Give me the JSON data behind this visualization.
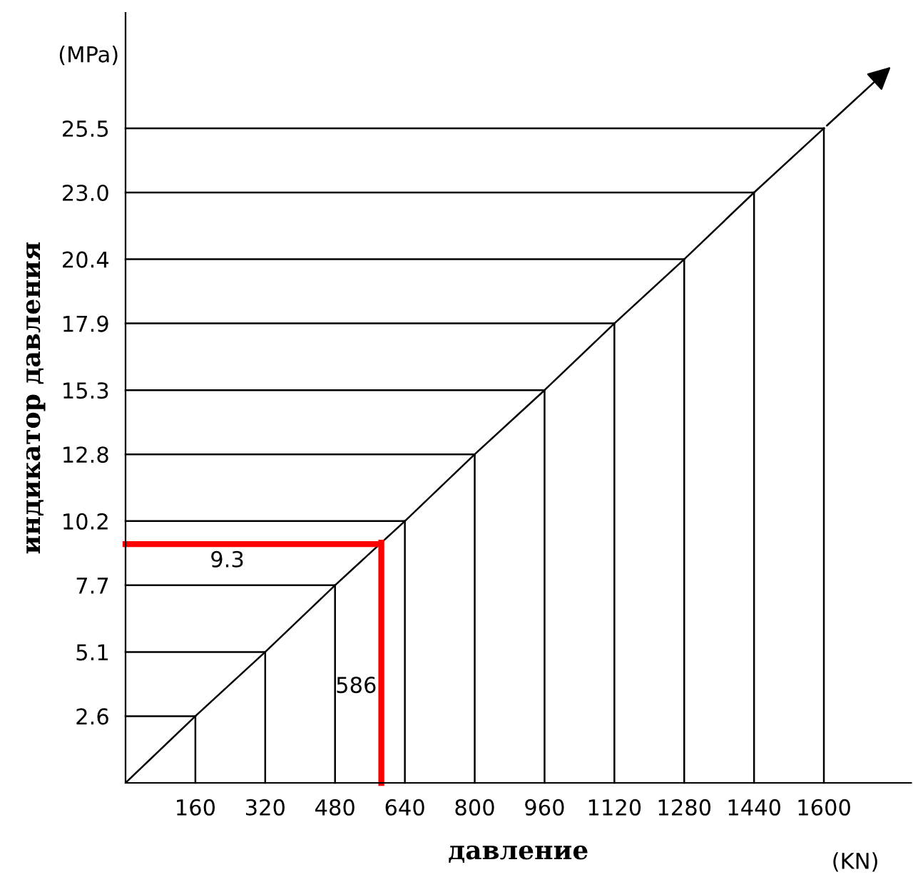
{
  "chart_data": {
    "type": "line",
    "xlabel": "давление",
    "ylabel": "индикатор давления",
    "x": [
      0,
      160,
      320,
      480,
      640,
      800,
      960,
      1120,
      1280,
      1440,
      1600
    ],
    "series": [
      {
        "color": "#000000",
        "values": [
          0,
          2.6,
          5.1,
          7.7,
          10.2,
          12.8,
          15.3,
          17.9,
          20.4,
          23.0,
          25.5
        ]
      }
    ],
    "xlim": [
      0,
      1800
    ],
    "ylim": [
      0,
      30
    ],
    "xticks": [
      160,
      320,
      480,
      640,
      800,
      960,
      1120,
      1280,
      1440,
      1600
    ],
    "yticks": [
      2.6,
      5.1,
      7.7,
      10.2,
      12.8,
      15.3,
      17.9,
      20.4,
      {
        "value": 23.0,
        "label": "23.0"
      },
      25.5
    ],
    "ref_lines": [
      {
        "axis": "x",
        "value": 586,
        "label": "586",
        "color": "#ff0000"
      },
      {
        "axis": "y",
        "value": 9.3,
        "label": "9.3",
        "color": "#ff0000"
      },
      {
        "axis": "x",
        "value": 160,
        "color": "#000000"
      },
      {
        "axis": "x",
        "value": 320,
        "color": "#000000"
      },
      {
        "axis": "x",
        "value": 480,
        "color": "#000000"
      },
      {
        "axis": "x",
        "value": 640,
        "color": "#000000"
      },
      {
        "axis": "x",
        "value": 800,
        "color": "#000000"
      },
      {
        "axis": "x",
        "value": 960,
        "color": "#000000"
      },
      {
        "axis": "x",
        "value": 1120,
        "color": "#000000"
      },
      {
        "axis": "x",
        "value": 1280,
        "color": "#000000"
      },
      {
        "axis": "x",
        "value": 1440,
        "color": "#000000"
      },
      {
        "axis": "x",
        "value": 1600,
        "color": "#000000"
      },
      {
        "axis": "y",
        "value": 2.6,
        "color": "#000000"
      },
      {
        "axis": "y",
        "value": 5.1,
        "color": "#000000"
      },
      {
        "axis": "y",
        "value": 7.7,
        "color": "#000000"
      },
      {
        "axis": "y",
        "value": 10.2,
        "color": "#000000"
      },
      {
        "axis": "y",
        "value": 12.8,
        "color": "#000000"
      },
      {
        "axis": "y",
        "value": 15.3,
        "color": "#000000"
      },
      {
        "axis": "y",
        "value": 17.9,
        "color": "#000000"
      },
      {
        "axis": "y",
        "value": 20.4,
        "color": "#000000"
      },
      {
        "axis": "y",
        "value": 23.0,
        "color": "#000000"
      },
      {
        "axis": "y",
        "value": 25.5,
        "color": "#000000"
      }
    ],
    "annotations": [
      "(MPa)",
      "(KN)"
    ],
    "grid": false,
    "legend": false,
    "marker": "none",
    "line_style": "solid"
  }
}
